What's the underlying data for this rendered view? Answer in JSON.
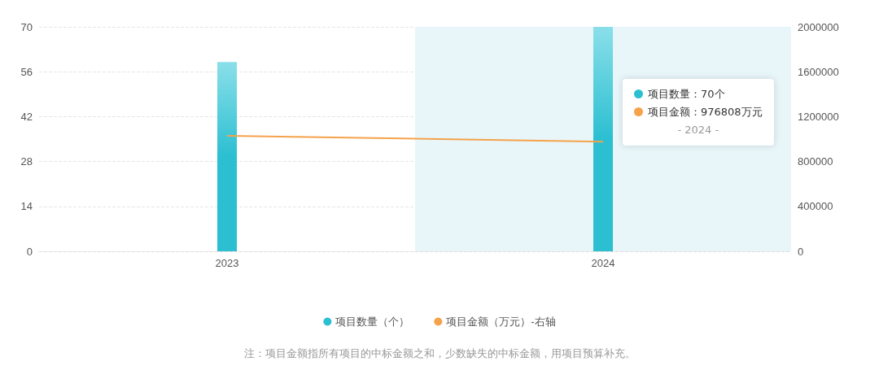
{
  "chart_data": {
    "type": "bar",
    "categories": [
      "2023",
      "2024"
    ],
    "series": [
      {
        "name": "项目数量（个）",
        "color": "#2bbfd1",
        "values": [
          59,
          70
        ]
      },
      {
        "name": "项目金额（万元）-右轴",
        "type": "line",
        "axis": "y2",
        "color": "#f5a24b",
        "values": [
          1029000,
          976808
        ]
      }
    ],
    "ylim": [
      0,
      70
    ],
    "yticks": [
      0,
      14,
      28,
      42,
      56,
      70
    ],
    "y2lim": [
      0,
      2000000
    ],
    "y2ticks": [
      0,
      400000,
      800000,
      1200000,
      1600000,
      2000000
    ],
    "grid": "y",
    "legend": "bottom",
    "marker": "none",
    "bands": [
      {
        "axis": "x",
        "from": "2024",
        "to": "2024",
        "color": "#e8f6fa"
      }
    ],
    "annotations": [
      "项目数量：70个",
      "项目金额：976808万元",
      "- 2024 -",
      "注：项目金额指所有项目的中标金额之和，少数缺失的中标金额，用项目预算补充。"
    ]
  }
}
